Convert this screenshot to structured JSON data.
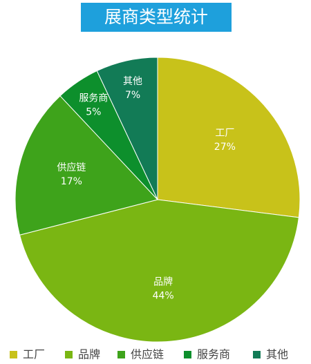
{
  "chart_data": {
    "type": "pie",
    "title": "展商类型统计",
    "categories": [
      "工厂",
      "品牌",
      "供应链",
      "服务商",
      "其他"
    ],
    "values": [
      27,
      44,
      17,
      5,
      7
    ],
    "value_labels": [
      "27%",
      "44%",
      "17%",
      "5%",
      "7%"
    ],
    "colors": [
      "#c8c21a",
      "#7ab613",
      "#3ea31b",
      "#0d8f2c",
      "#127b56"
    ],
    "legend": "bottom"
  }
}
